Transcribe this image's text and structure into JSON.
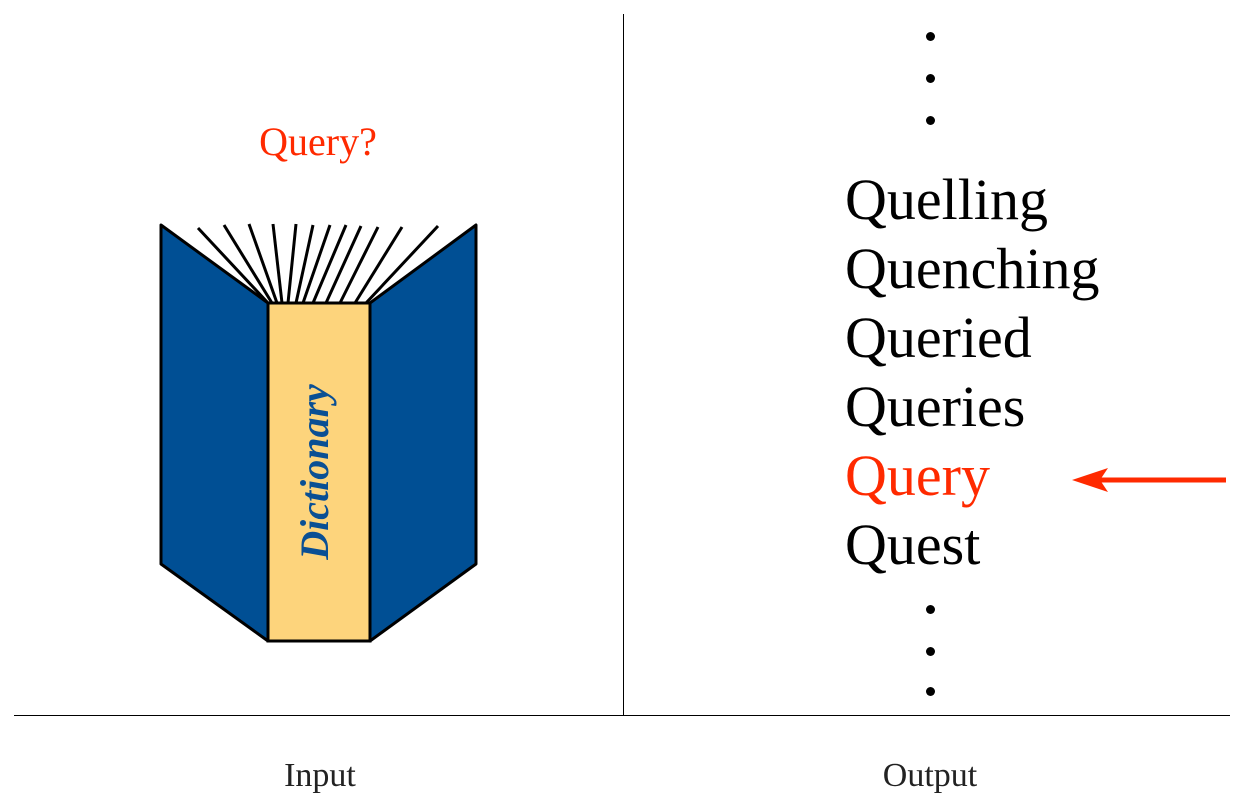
{
  "input_panel": {
    "query_label": "Query?",
    "book_spine_text": "Dictionary"
  },
  "output_panel": {
    "words": [
      {
        "text": "Quelling",
        "highlighted": false
      },
      {
        "text": "Quenching",
        "highlighted": false
      },
      {
        "text": "Queried",
        "highlighted": false
      },
      {
        "text": "Queries",
        "highlighted": false
      },
      {
        "text": "Query",
        "highlighted": true
      },
      {
        "text": "Quest",
        "highlighted": false
      }
    ]
  },
  "captions": {
    "input": "Input",
    "output": "Output"
  },
  "colors": {
    "highlight": "#ff2a00",
    "book_cover": "#004f94",
    "book_spine": "#fdd47c",
    "spine_text": "#0a4f94"
  }
}
